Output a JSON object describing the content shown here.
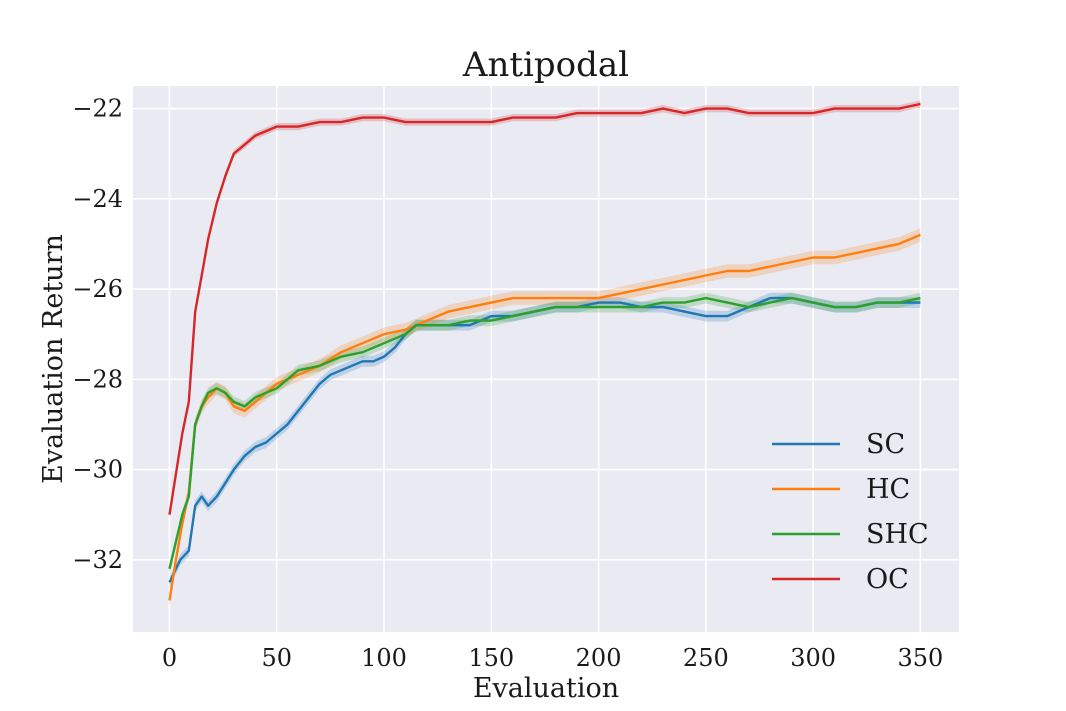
{
  "chart_data": {
    "type": "line",
    "title": "Antipodal",
    "xlabel": "Evaluation",
    "ylabel": "Evaluation Return",
    "xlim": [
      -17,
      368
    ],
    "ylim": [
      -33.6,
      -21.5
    ],
    "xticks": [
      0,
      50,
      100,
      150,
      200,
      250,
      300,
      350
    ],
    "yticks": [
      -32,
      -30,
      -28,
      -26,
      -24,
      -22
    ],
    "ytick_labels": [
      "−32",
      "−30",
      "−28",
      "−26",
      "−24",
      "−22"
    ],
    "grid": true,
    "background": "#eaeaf2",
    "legend_position": "lower-right",
    "series": [
      {
        "name": "SC",
        "color": "#1f77b4",
        "x": [
          0,
          5,
          9,
          12,
          15,
          18,
          22,
          26,
          30,
          35,
          40,
          45,
          50,
          55,
          60,
          65,
          70,
          75,
          80,
          85,
          90,
          95,
          100,
          105,
          110,
          115,
          120,
          130,
          140,
          150,
          160,
          170,
          180,
          190,
          200,
          210,
          220,
          230,
          240,
          250,
          260,
          270,
          280,
          290,
          300,
          310,
          320,
          330,
          340,
          350
        ],
        "y": [
          -32.5,
          -32.0,
          -31.8,
          -30.8,
          -30.6,
          -30.8,
          -30.6,
          -30.3,
          -30.0,
          -29.7,
          -29.5,
          -29.4,
          -29.2,
          -29.0,
          -28.7,
          -28.4,
          -28.1,
          -27.9,
          -27.8,
          -27.7,
          -27.6,
          -27.6,
          -27.5,
          -27.3,
          -27.0,
          -26.8,
          -26.8,
          -26.8,
          -26.8,
          -26.6,
          -26.6,
          -26.5,
          -26.4,
          -26.4,
          -26.3,
          -26.3,
          -26.4,
          -26.4,
          -26.5,
          -26.6,
          -26.6,
          -26.4,
          -26.2,
          -26.2,
          -26.3,
          -26.4,
          -26.4,
          -26.3,
          -26.3,
          -26.3
        ],
        "band": 0.12
      },
      {
        "name": "HC",
        "color": "#ff7f0e",
        "x": [
          0,
          3,
          6,
          9,
          12,
          15,
          18,
          22,
          26,
          30,
          35,
          40,
          45,
          50,
          55,
          60,
          70,
          80,
          90,
          100,
          110,
          120,
          130,
          140,
          150,
          160,
          170,
          180,
          190,
          200,
          210,
          220,
          230,
          240,
          250,
          260,
          270,
          280,
          290,
          300,
          310,
          320,
          330,
          340,
          350
        ],
        "y": [
          -32.9,
          -32.0,
          -31.2,
          -30.5,
          -29.0,
          -28.6,
          -28.4,
          -28.2,
          -28.3,
          -28.6,
          -28.7,
          -28.5,
          -28.3,
          -28.1,
          -28.0,
          -27.9,
          -27.7,
          -27.4,
          -27.2,
          -27.0,
          -26.9,
          -26.7,
          -26.5,
          -26.4,
          -26.3,
          -26.2,
          -26.2,
          -26.2,
          -26.2,
          -26.2,
          -26.1,
          -26.0,
          -25.9,
          -25.8,
          -25.7,
          -25.6,
          -25.6,
          -25.5,
          -25.4,
          -25.3,
          -25.3,
          -25.2,
          -25.1,
          -25.0,
          -24.8
        ],
        "band": 0.15
      },
      {
        "name": "SHC",
        "color": "#2ca02c",
        "x": [
          0,
          3,
          6,
          9,
          12,
          15,
          18,
          22,
          26,
          30,
          35,
          40,
          45,
          50,
          55,
          60,
          70,
          80,
          90,
          100,
          110,
          115,
          120,
          130,
          140,
          150,
          160,
          170,
          180,
          190,
          200,
          210,
          220,
          230,
          240,
          250,
          260,
          270,
          280,
          290,
          300,
          310,
          320,
          330,
          340,
          350
        ],
        "y": [
          -32.2,
          -31.6,
          -31.0,
          -30.6,
          -29.0,
          -28.6,
          -28.3,
          -28.2,
          -28.3,
          -28.5,
          -28.6,
          -28.4,
          -28.3,
          -28.2,
          -28.0,
          -27.8,
          -27.7,
          -27.5,
          -27.4,
          -27.2,
          -27.0,
          -26.8,
          -26.8,
          -26.8,
          -26.7,
          -26.7,
          -26.6,
          -26.5,
          -26.4,
          -26.4,
          -26.4,
          -26.4,
          -26.4,
          -26.3,
          -26.3,
          -26.2,
          -26.3,
          -26.4,
          -26.3,
          -26.2,
          -26.3,
          -26.4,
          -26.4,
          -26.3,
          -26.3,
          -26.2
        ],
        "band": 0.12
      },
      {
        "name": "OC",
        "color": "#d62728",
        "x": [
          0,
          3,
          6,
          9,
          12,
          15,
          18,
          22,
          26,
          30,
          35,
          40,
          45,
          50,
          55,
          60,
          70,
          80,
          90,
          100,
          110,
          120,
          130,
          140,
          150,
          160,
          170,
          180,
          190,
          200,
          210,
          220,
          230,
          240,
          250,
          260,
          270,
          280,
          290,
          300,
          310,
          320,
          330,
          340,
          350
        ],
        "y": [
          -31.0,
          -30.1,
          -29.2,
          -28.5,
          -26.5,
          -25.7,
          -24.9,
          -24.1,
          -23.5,
          -23.0,
          -22.8,
          -22.6,
          -22.5,
          -22.4,
          -22.4,
          -22.4,
          -22.3,
          -22.3,
          -22.2,
          -22.2,
          -22.3,
          -22.3,
          -22.3,
          -22.3,
          -22.3,
          -22.2,
          -22.2,
          -22.2,
          -22.1,
          -22.1,
          -22.1,
          -22.1,
          -22.0,
          -22.1,
          -22.0,
          -22.0,
          -22.1,
          -22.1,
          -22.1,
          -22.1,
          -22.0,
          -22.0,
          -22.0,
          -22.0,
          -21.9
        ],
        "band": 0.08
      }
    ]
  }
}
